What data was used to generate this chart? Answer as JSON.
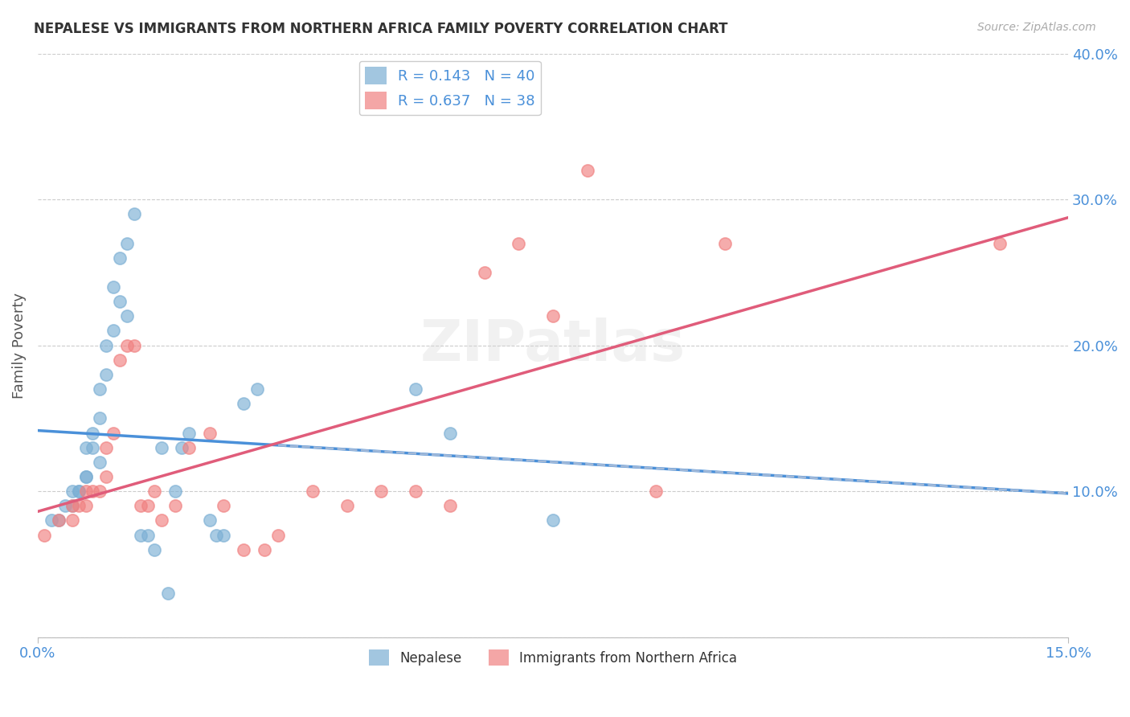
{
  "title": "NEPALESE VS IMMIGRANTS FROM NORTHERN AFRICA FAMILY POVERTY CORRELATION CHART",
  "source": "Source: ZipAtlas.com",
  "ylabel": "Family Poverty",
  "xlim": [
    0.0,
    0.15
  ],
  "ylim": [
    0.0,
    0.4
  ],
  "nepalese_color": "#7bafd4",
  "northern_africa_color": "#f08080",
  "trend_nepalese_color": "#4a90d9",
  "trend_northern_africa_color": "#e05c7a",
  "trend_nepalese_dashed_color": "#a0b8d8",
  "watermark": "ZIPatlas",
  "nepalese_x": [
    0.002,
    0.003,
    0.004,
    0.005,
    0.005,
    0.006,
    0.006,
    0.007,
    0.007,
    0.007,
    0.008,
    0.008,
    0.009,
    0.009,
    0.009,
    0.01,
    0.01,
    0.011,
    0.011,
    0.012,
    0.012,
    0.013,
    0.013,
    0.014,
    0.015,
    0.016,
    0.017,
    0.018,
    0.019,
    0.02,
    0.021,
    0.022,
    0.025,
    0.026,
    0.027,
    0.03,
    0.032,
    0.055,
    0.06,
    0.075
  ],
  "nepalese_y": [
    0.08,
    0.08,
    0.09,
    0.09,
    0.1,
    0.1,
    0.1,
    0.11,
    0.11,
    0.13,
    0.13,
    0.14,
    0.12,
    0.15,
    0.17,
    0.18,
    0.2,
    0.21,
    0.24,
    0.23,
    0.26,
    0.22,
    0.27,
    0.29,
    0.07,
    0.07,
    0.06,
    0.13,
    0.03,
    0.1,
    0.13,
    0.14,
    0.08,
    0.07,
    0.07,
    0.16,
    0.17,
    0.17,
    0.14,
    0.08
  ],
  "northern_africa_x": [
    0.001,
    0.003,
    0.005,
    0.005,
    0.006,
    0.007,
    0.007,
    0.008,
    0.009,
    0.01,
    0.01,
    0.011,
    0.012,
    0.013,
    0.014,
    0.015,
    0.016,
    0.017,
    0.018,
    0.02,
    0.022,
    0.025,
    0.027,
    0.03,
    0.033,
    0.035,
    0.04,
    0.045,
    0.05,
    0.055,
    0.06,
    0.065,
    0.07,
    0.075,
    0.08,
    0.09,
    0.1,
    0.14
  ],
  "northern_africa_y": [
    0.07,
    0.08,
    0.08,
    0.09,
    0.09,
    0.09,
    0.1,
    0.1,
    0.1,
    0.11,
    0.13,
    0.14,
    0.19,
    0.2,
    0.2,
    0.09,
    0.09,
    0.1,
    0.08,
    0.09,
    0.13,
    0.14,
    0.09,
    0.06,
    0.06,
    0.07,
    0.1,
    0.09,
    0.1,
    0.1,
    0.09,
    0.25,
    0.27,
    0.22,
    0.32,
    0.1,
    0.27,
    0.27
  ],
  "background_color": "#ffffff",
  "grid_color": "#cccccc",
  "title_color": "#333333",
  "tick_label_color": "#4a90d9",
  "legend_r1": "R = 0.143   N = 40",
  "legend_r2": "R = 0.637   N = 38",
  "legend_label1": "Nepalese",
  "legend_label2": "Immigrants from Northern Africa"
}
